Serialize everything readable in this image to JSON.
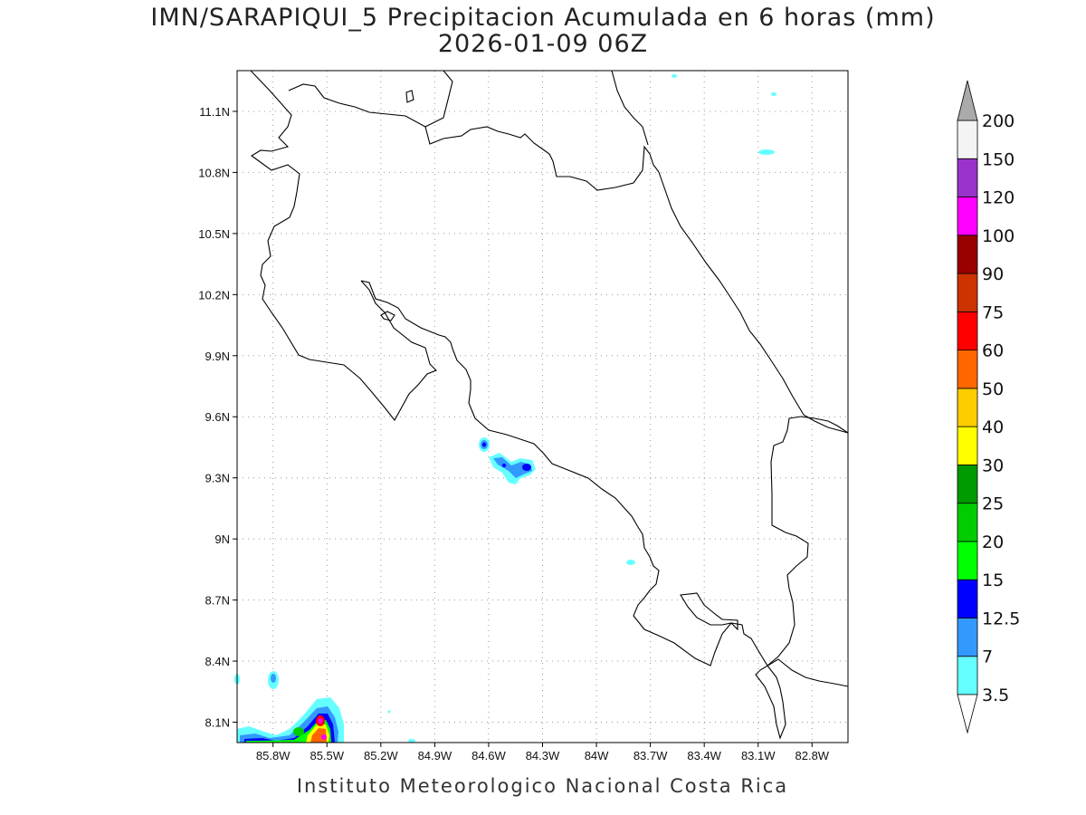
{
  "title": {
    "line1": "IMN/SARAPIQUI_5 Precipitacion Acumulada en 6 horas (mm)",
    "line2": "2026-01-09 06Z"
  },
  "footer": "Instituto Meteorologico Nacional Costa Rica",
  "map": {
    "lon_range": [
      -86.0,
      -82.6
    ],
    "lat_range": [
      8.0,
      11.3
    ],
    "y_ticks": [
      {
        "value": 11.1,
        "label": "11.1N"
      },
      {
        "value": 10.8,
        "label": "10.8N"
      },
      {
        "value": 10.5,
        "label": "10.5N"
      },
      {
        "value": 10.2,
        "label": "10.2N"
      },
      {
        "value": 9.9,
        "label": "9.9N"
      },
      {
        "value": 9.6,
        "label": "9.6N"
      },
      {
        "value": 9.3,
        "label": "9.3N"
      },
      {
        "value": 9.0,
        "label": "9N"
      },
      {
        "value": 8.7,
        "label": "8.7N"
      },
      {
        "value": 8.4,
        "label": "8.4N"
      },
      {
        "value": 8.1,
        "label": "8.1N"
      }
    ],
    "x_ticks": [
      {
        "value": -85.8,
        "label": "85.8W"
      },
      {
        "value": -85.5,
        "label": "85.5W"
      },
      {
        "value": -85.2,
        "label": "85.2W"
      },
      {
        "value": -84.9,
        "label": "84.9W"
      },
      {
        "value": -84.6,
        "label": "84.6W"
      },
      {
        "value": -84.3,
        "label": "84.3W"
      },
      {
        "value": -84.0,
        "label": "84W"
      },
      {
        "value": -83.7,
        "label": "83.7W"
      },
      {
        "value": -83.4,
        "label": "83.4W"
      },
      {
        "value": -83.1,
        "label": "83.1W"
      },
      {
        "value": -82.8,
        "label": "82.8W"
      }
    ],
    "grid": true
  },
  "colorbar": {
    "levels": [
      {
        "label": "3.5",
        "color": "#66ffff"
      },
      {
        "label": "7",
        "color": "#3399ff"
      },
      {
        "label": "12.5",
        "color": "#0000ff"
      },
      {
        "label": "15",
        "color": "#00ff00"
      },
      {
        "label": "20",
        "color": "#00cc00"
      },
      {
        "label": "25",
        "color": "#009900"
      },
      {
        "label": "30",
        "color": "#ffff00"
      },
      {
        "label": "40",
        "color": "#ffcc00"
      },
      {
        "label": "50",
        "color": "#ff6600"
      },
      {
        "label": "60",
        "color": "#ff0000"
      },
      {
        "label": "75",
        "color": "#cc3300"
      },
      {
        "label": "90",
        "color": "#990000"
      },
      {
        "label": "100",
        "color": "#ff00ff"
      },
      {
        "label": "120",
        "color": "#9933cc"
      },
      {
        "label": "150",
        "color": "#f4f4f4"
      },
      {
        "label": "200",
        "color": "#aaaaaa"
      }
    ]
  }
}
